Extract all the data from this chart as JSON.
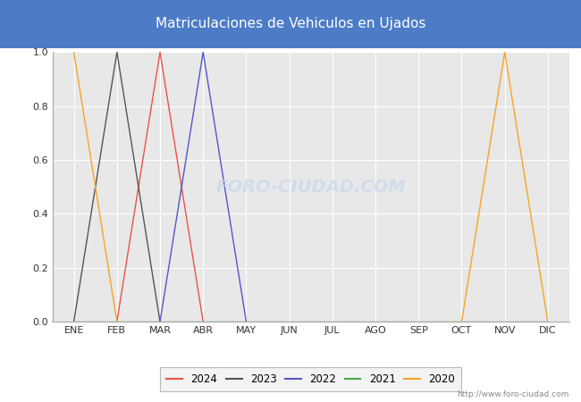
{
  "title": "Matriculaciones de Vehiculos en Ujados",
  "title_bg_color": "#4d7cc7",
  "title_text_color": "#ffffff",
  "months": [
    "ENE",
    "FEB",
    "MAR",
    "ABR",
    "MAY",
    "JUN",
    "JUL",
    "AGO",
    "SEP",
    "OCT",
    "NOV",
    "DIC"
  ],
  "series": [
    {
      "label": "2024",
      "color": "#e8534a",
      "data": [
        null,
        0.0,
        1.0,
        0.0,
        null,
        null,
        null,
        null,
        null,
        null,
        null,
        null
      ]
    },
    {
      "label": "2023",
      "color": "#555555",
      "data": [
        0.0,
        1.0,
        0.0,
        null,
        null,
        null,
        null,
        null,
        null,
        null,
        null,
        null
      ]
    },
    {
      "label": "2022",
      "color": "#5555cc",
      "data": [
        null,
        null,
        0.0,
        1.0,
        0.0,
        null,
        null,
        null,
        null,
        null,
        null,
        null
      ]
    },
    {
      "label": "2021",
      "color": "#44aa44",
      "data": [
        0.0,
        0.0,
        0.0,
        0.0,
        0.0,
        0.0,
        0.0,
        0.0,
        0.0,
        0.0,
        0.0,
        0.0
      ]
    },
    {
      "label": "2020",
      "color": "#f5a623",
      "data": [
        1.0,
        0.0,
        null,
        null,
        null,
        null,
        null,
        null,
        null,
        0.0,
        1.0,
        0.0
      ]
    }
  ],
  "ylim": [
    0.0,
    1.0
  ],
  "yticks": [
    0.0,
    0.2,
    0.4,
    0.6,
    0.8,
    1.0
  ],
  "plot_bg_color": "#e8e8e8",
  "grid_color": "#ffffff",
  "fig_bg_color": "#ffffff",
  "watermark_text": "FORO-CIUDAD.COM",
  "watermark_color": "#c8d8ee",
  "url_text": "http://www.foro-ciudad.com",
  "figsize": [
    6.5,
    4.5
  ],
  "dpi": 100
}
